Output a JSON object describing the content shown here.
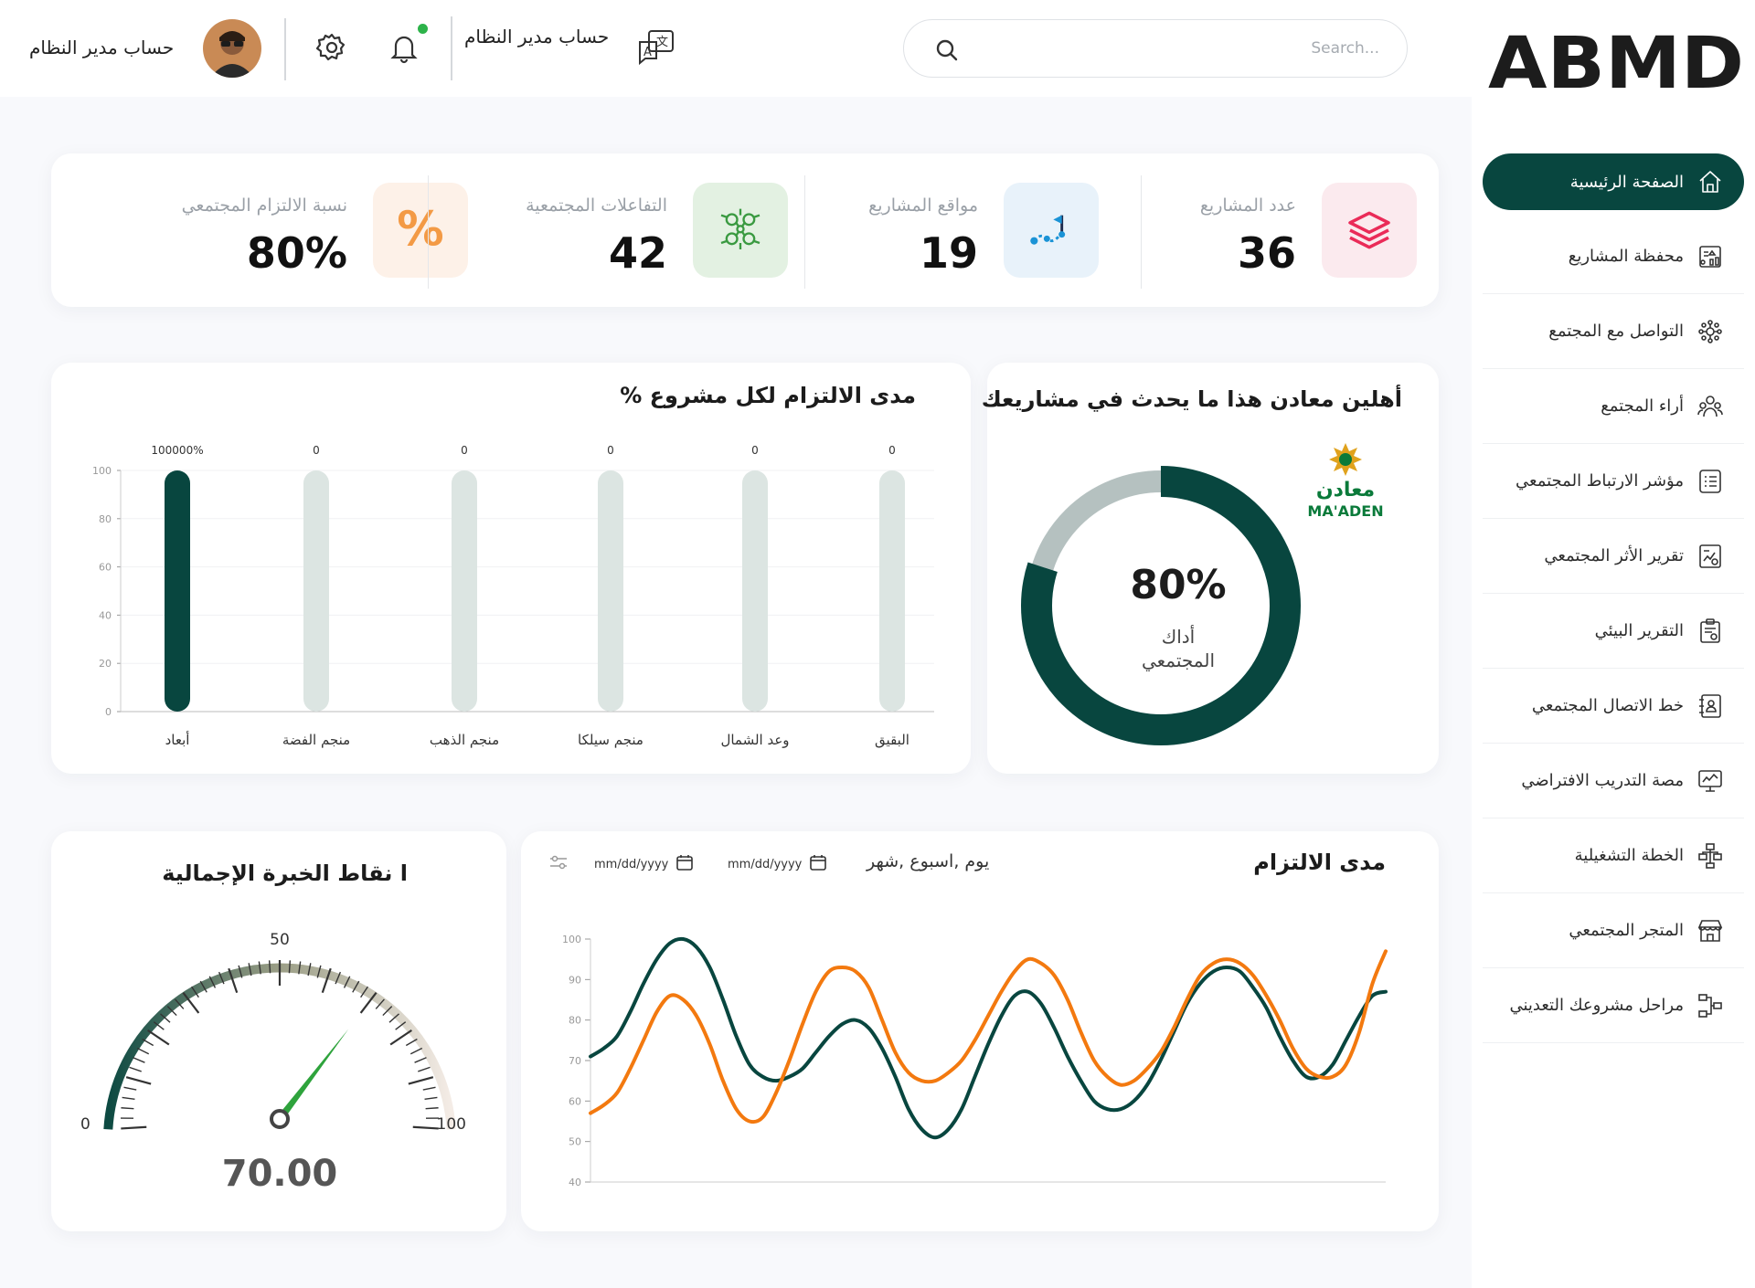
{
  "brand": {
    "logo_text": "ABMD"
  },
  "sidebar": {
    "items": [
      {
        "label": "الصفحة الرئيسية",
        "icon": "home-icon",
        "active": true
      },
      {
        "label": "محفظة المشاريع",
        "icon": "portfolio-icon"
      },
      {
        "label": "التواصل مع المجتمع",
        "icon": "community-network-icon"
      },
      {
        "label": "أراء المجتمع",
        "icon": "community-opinions-icon"
      },
      {
        "label": "مؤشر الارتباط المجتمعي",
        "icon": "list-icon"
      },
      {
        "label": "تقرير الأثر المجتمعي",
        "icon": "report-chart-icon"
      },
      {
        "label": "التقرير البيئي",
        "icon": "clipboard-icon"
      },
      {
        "label": "خط الاتصال المجتمعي",
        "icon": "contact-book-icon"
      },
      {
        "label": "مصة التدريب الافتراضي",
        "icon": "training-monitor-icon"
      },
      {
        "label": "الخطة التشغيلية",
        "icon": "flowchart-icon"
      },
      {
        "label": "المتجر المجتمعي",
        "icon": "store-icon"
      },
      {
        "label": "مراحل مشروعك التعديني",
        "icon": "stages-icon"
      }
    ]
  },
  "header": {
    "search_placeholder": "Search...",
    "language_label": "حساب مدير النظام",
    "account_name": "حساب مدير النظام"
  },
  "stats": [
    {
      "label": "عدد المشاريع",
      "value": "36",
      "icon": "layers-icon",
      "bg": "#fbeaee",
      "color": "#ea2b58"
    },
    {
      "label": "مواقع المشاريع",
      "value": "19",
      "icon": "route-flag-icon",
      "bg": "#e8f2fa",
      "color": "#1a93d6"
    },
    {
      "label": "التفاعلات المجتمعية",
      "value": "42",
      "icon": "network-people-icon",
      "bg": "#e3f1e2",
      "color": "#3a9a41"
    },
    {
      "label": "نسبة الالتزام المجتمعي",
      "value": "80%",
      "icon": "percent-icon",
      "bg": "#fdf1e8",
      "color": "#f39a45"
    }
  ],
  "welcome": {
    "title": "أهلين معادن هذا ما يحدث في مشاريعك",
    "company_logo_text": "معادن",
    "company_logo_latin": "MA'ADEN",
    "donut_value": "80%",
    "donut_label_1": "أداك",
    "donut_label_2": "المجتمعي"
  },
  "bar_section": {
    "title": "% مدى الالتزام  لكل مشروع"
  },
  "gauge_section": {
    "title": "ا نقاط الخبرة الإجمالية",
    "value": "70.00"
  },
  "line_section": {
    "title": "مدى الالتزام",
    "period_text": "يوم ,اسبوع ,شهر",
    "date_from": "mm/dd/yyyy",
    "date_to": "mm/dd/yyyy"
  },
  "colors": {
    "primary": "#08463f",
    "orange": "#f3790f",
    "bar_muted": "#dce5e2",
    "donut_track": "#b5c1c0"
  },
  "chart_data": [
    {
      "type": "pie",
      "title": "أهلين معادن هذا ما يحدث في مشاريعك",
      "values": [
        80,
        20
      ],
      "center_label": "80%"
    },
    {
      "type": "bar",
      "title": "% مدى الالتزام  لكل مشروع",
      "categories": [
        "البقيق",
        "وعد الشمال",
        "منجم سيلكا",
        "منجم الذهب",
        "منجم الفضة",
        "أبعاد"
      ],
      "values": [
        0,
        0,
        0,
        0,
        0,
        100000
      ],
      "data_labels": [
        "0",
        "0",
        "0",
        "0",
        "0",
        "100000%"
      ],
      "ylim": [
        0,
        100
      ],
      "yticks": [
        0,
        20,
        40,
        60,
        80,
        100
      ]
    },
    {
      "type": "gauge",
      "title": "ا نقاط الخبرة الإجمالية",
      "value": 70,
      "range": [
        0,
        100
      ],
      "tick_labels": [
        "0",
        "50",
        "100"
      ]
    },
    {
      "type": "line",
      "title": "مدى الالتزام",
      "ylim": [
        40,
        100
      ],
      "yticks": [
        40,
        50,
        60,
        70,
        80,
        90,
        100
      ],
      "x": [
        0,
        1,
        2,
        3,
        4,
        5,
        6,
        7,
        8,
        9,
        10,
        11,
        12,
        13,
        14,
        15,
        16,
        17,
        18,
        19,
        20,
        21,
        22,
        23,
        24,
        25,
        26,
        27,
        28,
        29,
        30,
        31,
        32,
        33,
        34,
        35,
        36,
        37,
        38,
        39,
        40,
        41,
        42,
        43,
        44,
        45,
        46,
        47,
        48,
        49,
        50,
        51,
        52,
        53,
        54,
        55,
        56,
        57,
        58,
        59,
        60
      ],
      "series": [
        {
          "color": "#08463f",
          "values": [
            71,
            73,
            76,
            82,
            89,
            95,
            99,
            100,
            98,
            93,
            85,
            76,
            69,
            66,
            65,
            66,
            68,
            72,
            76,
            79,
            80,
            78,
            73,
            66,
            58,
            53,
            51,
            53,
            58,
            66,
            74,
            81,
            86,
            87,
            84,
            78,
            71,
            65,
            60,
            58,
            58,
            60,
            64,
            70,
            77,
            84,
            89,
            92,
            93,
            92,
            88,
            83,
            76,
            70,
            66,
            66,
            69,
            75,
            81,
            86,
            87
          ]
        },
        {
          "color": "#f3790f",
          "values": [
            57,
            59,
            62,
            68,
            75,
            82,
            86,
            85,
            81,
            74,
            65,
            58,
            55,
            56,
            62,
            70,
            79,
            87,
            92,
            93,
            92,
            88,
            80,
            72,
            67,
            65,
            65,
            67,
            70,
            75,
            81,
            87,
            92,
            95,
            94,
            91,
            85,
            77,
            70,
            66,
            64,
            65,
            68,
            72,
            78,
            85,
            91,
            94,
            95,
            94,
            91,
            86,
            80,
            73,
            68,
            66,
            66,
            69,
            77,
            89,
            97
          ]
        }
      ]
    }
  ]
}
